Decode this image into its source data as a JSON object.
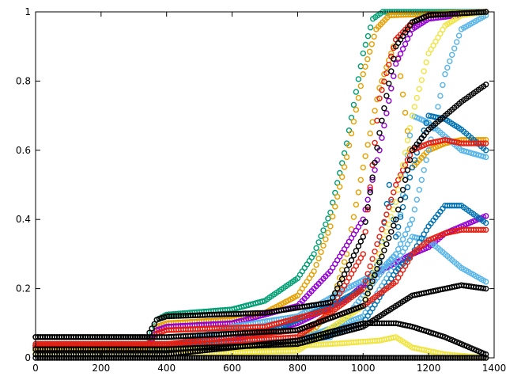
{
  "chart_data": {
    "type": "scatter",
    "title": "",
    "xlabel": "",
    "ylabel": "",
    "xlim": [
      0,
      1400
    ],
    "ylim": [
      0,
      1
    ],
    "grid": false,
    "legend": "none",
    "x_ticks": [
      0,
      200,
      400,
      600,
      800,
      1000,
      1200,
      1400
    ],
    "y_ticks": [
      0,
      0.2,
      0.4,
      0.6,
      0.8,
      1
    ],
    "x_tick_labels": [
      "0",
      "200",
      "400",
      "600",
      "800",
      "1000",
      "1200",
      "1400"
    ],
    "y_tick_labels": [
      "0",
      "0.2",
      "0.4",
      "0.6",
      "0.8",
      "1"
    ],
    "marker": "open-circle",
    "series": [
      {
        "color": "#009e73",
        "values": [
          [
            0,
            0.035
          ],
          [
            340,
            0.035
          ],
          [
            370,
            0.11
          ],
          [
            400,
            0.125
          ],
          [
            600,
            0.14
          ],
          [
            700,
            0.165
          ],
          [
            800,
            0.23
          ],
          [
            850,
            0.3
          ],
          [
            900,
            0.42
          ],
          [
            950,
            0.62
          ],
          [
            1000,
            0.88
          ],
          [
            1030,
            0.98
          ],
          [
            1060,
            1.0
          ],
          [
            1375,
            1.0
          ]
        ]
      },
      {
        "color": "#e69f00",
        "values": [
          [
            0,
            0.03
          ],
          [
            340,
            0.03
          ],
          [
            370,
            0.09
          ],
          [
            400,
            0.1
          ],
          [
            600,
            0.11
          ],
          [
            700,
            0.13
          ],
          [
            800,
            0.18
          ],
          [
            850,
            0.25
          ],
          [
            900,
            0.38
          ],
          [
            950,
            0.58
          ],
          [
            1000,
            0.82
          ],
          [
            1040,
            0.95
          ],
          [
            1080,
            0.99
          ],
          [
            1375,
            1.0
          ]
        ]
      },
      {
        "color": "#e69f00",
        "values": [
          [
            0,
            0.02
          ],
          [
            400,
            0.02
          ],
          [
            700,
            0.03
          ],
          [
            800,
            0.05
          ],
          [
            850,
            0.08
          ],
          [
            900,
            0.14
          ],
          [
            950,
            0.3
          ],
          [
            1000,
            0.55
          ],
          [
            1050,
            0.78
          ],
          [
            1100,
            0.92
          ],
          [
            1150,
            0.55
          ],
          [
            1200,
            0.6
          ],
          [
            1250,
            0.62
          ],
          [
            1300,
            0.63
          ],
          [
            1375,
            0.63
          ]
        ]
      },
      {
        "color": "#9400d3",
        "values": [
          [
            0,
            0.03
          ],
          [
            340,
            0.03
          ],
          [
            370,
            0.08
          ],
          [
            400,
            0.09
          ],
          [
            600,
            0.1
          ],
          [
            800,
            0.15
          ],
          [
            900,
            0.25
          ],
          [
            1000,
            0.4
          ],
          [
            1050,
            0.6
          ],
          [
            1100,
            0.85
          ],
          [
            1150,
            0.95
          ],
          [
            1200,
            0.98
          ],
          [
            1375,
            1.0
          ]
        ]
      },
      {
        "color": "#9400d3",
        "values": [
          [
            0,
            0.03
          ],
          [
            400,
            0.03
          ],
          [
            600,
            0.05
          ],
          [
            800,
            0.1
          ],
          [
            950,
            0.17
          ],
          [
            1050,
            0.25
          ],
          [
            1150,
            0.3
          ],
          [
            1200,
            0.32
          ],
          [
            1250,
            0.36
          ],
          [
            1300,
            0.38
          ],
          [
            1375,
            0.41
          ]
        ]
      },
      {
        "color": "#56b4e9",
        "values": [
          [
            0,
            0.03
          ],
          [
            400,
            0.03
          ],
          [
            600,
            0.09
          ],
          [
            800,
            0.12
          ],
          [
            950,
            0.2
          ],
          [
            1050,
            0.25
          ],
          [
            1100,
            0.3
          ],
          [
            1150,
            0.4
          ],
          [
            1200,
            0.6
          ],
          [
            1250,
            0.82
          ],
          [
            1300,
            0.95
          ],
          [
            1375,
            0.99
          ]
        ]
      },
      {
        "color": "#56b4e9",
        "values": [
          [
            0,
            0.03
          ],
          [
            400,
            0.03
          ],
          [
            700,
            0.04
          ],
          [
            900,
            0.06
          ],
          [
            1100,
            0.3
          ],
          [
            1150,
            0.7
          ],
          [
            1200,
            0.68
          ],
          [
            1250,
            0.64
          ],
          [
            1300,
            0.6
          ],
          [
            1375,
            0.58
          ]
        ]
      },
      {
        "color": "#56b4e9",
        "values": [
          [
            0,
            0.03
          ],
          [
            400,
            0.03
          ],
          [
            800,
            0.05
          ],
          [
            1000,
            0.12
          ],
          [
            1150,
            0.35
          ],
          [
            1200,
            0.34
          ],
          [
            1250,
            0.3
          ],
          [
            1300,
            0.26
          ],
          [
            1375,
            0.22
          ]
        ]
      },
      {
        "color": "#0072b2",
        "values": [
          [
            0,
            0.035
          ],
          [
            400,
            0.035
          ],
          [
            700,
            0.07
          ],
          [
            900,
            0.15
          ],
          [
            1000,
            0.2
          ],
          [
            1050,
            0.28
          ],
          [
            1080,
            0.5
          ],
          [
            1100,
            0.35
          ],
          [
            1150,
            0.55
          ],
          [
            1200,
            0.7
          ],
          [
            1250,
            0.69
          ],
          [
            1300,
            0.66
          ],
          [
            1375,
            0.6
          ]
        ]
      },
      {
        "color": "#0072b2",
        "values": [
          [
            0,
            0.02
          ],
          [
            400,
            0.02
          ],
          [
            800,
            0.04
          ],
          [
            1000,
            0.1
          ],
          [
            1100,
            0.25
          ],
          [
            1150,
            0.3
          ],
          [
            1200,
            0.38
          ],
          [
            1250,
            0.44
          ],
          [
            1300,
            0.44
          ],
          [
            1375,
            0.39
          ]
        ]
      },
      {
        "color": "#e51e10",
        "values": [
          [
            0,
            0.03
          ],
          [
            340,
            0.03
          ],
          [
            370,
            0.07
          ],
          [
            400,
            0.08
          ],
          [
            700,
            0.09
          ],
          [
            900,
            0.14
          ],
          [
            1000,
            0.3
          ],
          [
            1050,
            0.75
          ],
          [
            1100,
            0.92
          ],
          [
            1150,
            0.97
          ],
          [
            1200,
            0.99
          ],
          [
            1375,
            1.0
          ]
        ]
      },
      {
        "color": "#e51e10",
        "values": [
          [
            0,
            0.04
          ],
          [
            400,
            0.04
          ],
          [
            800,
            0.08
          ],
          [
            1000,
            0.15
          ],
          [
            1100,
            0.22
          ],
          [
            1150,
            0.3
          ],
          [
            1200,
            0.34
          ],
          [
            1250,
            0.36
          ],
          [
            1300,
            0.37
          ],
          [
            1375,
            0.37
          ]
        ]
      },
      {
        "color": "#e51e10",
        "values": [
          [
            0,
            0.035
          ],
          [
            400,
            0.035
          ],
          [
            800,
            0.06
          ],
          [
            1000,
            0.2
          ],
          [
            1100,
            0.5
          ],
          [
            1150,
            0.6
          ],
          [
            1200,
            0.62
          ],
          [
            1250,
            0.63
          ],
          [
            1300,
            0.62
          ],
          [
            1375,
            0.62
          ]
        ]
      },
      {
        "color": "#f0e442",
        "values": [
          [
            0,
            0.01
          ],
          [
            400,
            0.01
          ],
          [
            800,
            0.02
          ],
          [
            1000,
            0.15
          ],
          [
            1100,
            0.45
          ],
          [
            1150,
            0.7
          ],
          [
            1200,
            0.88
          ],
          [
            1250,
            0.96
          ],
          [
            1300,
            0.99
          ],
          [
            1375,
            1.0
          ]
        ]
      },
      {
        "color": "#f0e442",
        "values": [
          [
            0,
            0.02
          ],
          [
            400,
            0.02
          ],
          [
            700,
            0.03
          ],
          [
            900,
            0.04
          ],
          [
            1050,
            0.05
          ],
          [
            1100,
            0.06
          ],
          [
            1150,
            0.03
          ],
          [
            1250,
            0.01
          ],
          [
            1375,
            0.0
          ]
        ]
      },
      {
        "color": "#000000",
        "values": [
          [
            0,
            0.06
          ],
          [
            340,
            0.06
          ],
          [
            370,
            0.11
          ],
          [
            400,
            0.12
          ],
          [
            700,
            0.13
          ],
          [
            900,
            0.16
          ],
          [
            1000,
            0.35
          ],
          [
            1050,
            0.65
          ],
          [
            1100,
            0.9
          ],
          [
            1150,
            0.97
          ],
          [
            1200,
            0.99
          ],
          [
            1375,
            1.0
          ]
        ]
      },
      {
        "color": "#000000",
        "values": [
          [
            0,
            0.06
          ],
          [
            400,
            0.06
          ],
          [
            800,
            0.08
          ],
          [
            1000,
            0.15
          ],
          [
            1100,
            0.4
          ],
          [
            1150,
            0.6
          ],
          [
            1200,
            0.66
          ],
          [
            1250,
            0.7
          ],
          [
            1300,
            0.74
          ],
          [
            1375,
            0.79
          ]
        ]
      },
      {
        "color": "#000000",
        "values": [
          [
            0,
            0.025
          ],
          [
            400,
            0.025
          ],
          [
            800,
            0.04
          ],
          [
            1000,
            0.09
          ],
          [
            1100,
            0.15
          ],
          [
            1150,
            0.18
          ],
          [
            1200,
            0.19
          ],
          [
            1250,
            0.2
          ],
          [
            1300,
            0.21
          ],
          [
            1375,
            0.2
          ]
        ]
      },
      {
        "color": "#000000",
        "values": [
          [
            0,
            0.01
          ],
          [
            400,
            0.01
          ],
          [
            800,
            0.05
          ],
          [
            1000,
            0.1
          ],
          [
            1100,
            0.1
          ],
          [
            1150,
            0.09
          ],
          [
            1250,
            0.06
          ],
          [
            1375,
            0.01
          ]
        ]
      },
      {
        "color": "#000000",
        "values": [
          [
            0,
            0.0
          ],
          [
            1375,
            0.0
          ]
        ]
      }
    ]
  }
}
